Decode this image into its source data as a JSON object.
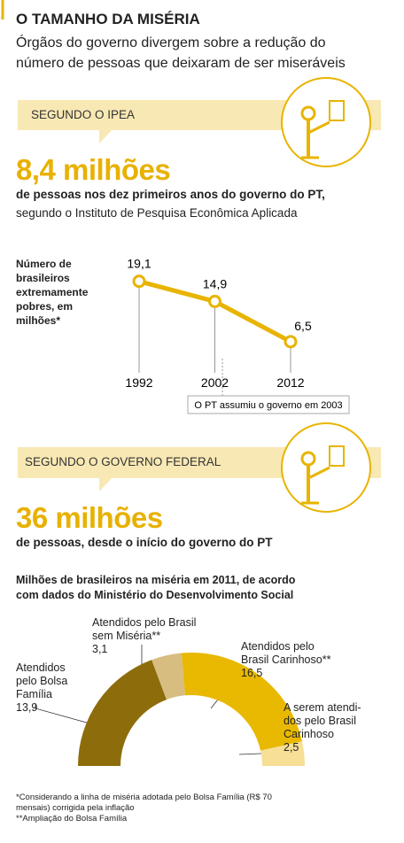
{
  "header": {
    "title": "O TAMANHO DA MISÉRIA",
    "subtitle": "Órgãos do governo divergem sobre a redução do\nnúmero de pessoas que deixaram de ser miseráveis"
  },
  "sections": [
    {
      "label": "SEGUNDO O IPEA",
      "big_number": "8,4 milhões",
      "description_bold": "de pessoas nos dez primeiros anos do governo do PT,",
      "description": "segundo o Instituto de Pesquisa Econômica Aplicada"
    },
    {
      "label": "SEGUNDO O GOVERNO FEDERAL",
      "big_number": "36 milhões",
      "description_bold": "de pessoas, desde o início do governo do PT"
    }
  ],
  "chart_data": [
    {
      "type": "line",
      "ylabel": "Número de\nbrasileiros\nextremamente\npobres, em\nmilhões*",
      "x": [
        1992,
        2002,
        2012
      ],
      "values": [
        19.1,
        14.9,
        6.5
      ],
      "value_labels": [
        "19,1",
        "14,9",
        "6,5"
      ],
      "xlim": [
        1992,
        2012
      ],
      "xticks": [
        1992,
        2002,
        2012
      ],
      "ylim": [
        0,
        22
      ],
      "color": "#e8b400",
      "annotation": {
        "text": "O PT assumiu o governo em 2003",
        "x": 2003
      }
    },
    {
      "type": "pie",
      "title": "Milhões de brasileiros na miséria em 2011, de acordo\ncom dados do Ministério do Desenvolvimento Social",
      "categories": [
        "Atendidos\npelo Bolsa\nFamília",
        "Atendidos pelo Brasil\nsem Miséria**",
        "Atendidos pelo\nBrasil Carinhoso**",
        "A serem atendi-\ndos pelo Brasil\nCarinhoso"
      ],
      "values": [
        13.9,
        3.1,
        16.5,
        2.5
      ],
      "value_labels": [
        "13,9",
        "3,1",
        "16,5",
        "2,5"
      ],
      "colors": [
        "#8d6d0b",
        "#d8bd80",
        "#e8b900",
        "#f7df96"
      ]
    }
  ],
  "footnotes": [
    "*Considerando a linha de miséria adotada pelo Bolsa Família (R$ 70\nmensais) corrigida pela inflação",
    "**Ampliação do Bolsa Família"
  ]
}
